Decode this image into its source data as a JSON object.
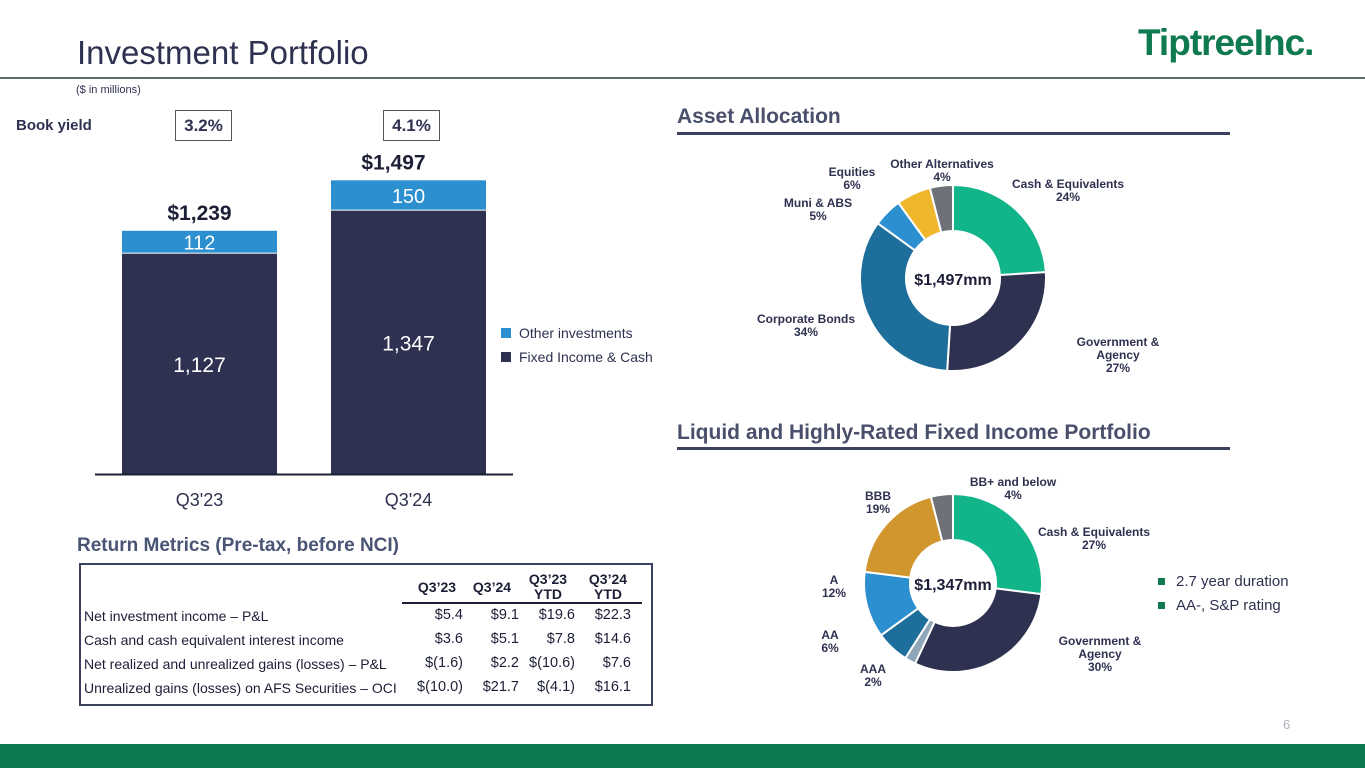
{
  "header": {
    "title": "Investment Portfolio",
    "logo_main": "Tiptree",
    "logo_suffix": "Inc.",
    "subtitle": "($ in millions)"
  },
  "book_yield": {
    "label": "Book yield",
    "values": [
      "3.2%",
      "4.1%"
    ]
  },
  "sections": {
    "asset_allocation": "Asset Allocation",
    "fixed_income": "Liquid and Highly-Rated Fixed Income Portfolio",
    "return_metrics": "Return Metrics (Pre-tax, before NCI)"
  },
  "bar_legend": [
    "Other investments",
    "Fixed Income & Cash"
  ],
  "fixed_income_notes": [
    "2.7 year duration",
    "AA-, S&P rating"
  ],
  "table": {
    "headers": [
      [
        "Q3’23",
        ""
      ],
      [
        "Q3’24",
        ""
      ],
      [
        "Q3’23",
        "YTD"
      ],
      [
        "Q3’24",
        "YTD"
      ]
    ],
    "rows": [
      {
        "label": "Net investment income – P&L",
        "values": [
          "$5.4",
          "$9.1",
          "$19.6",
          "$22.3"
        ]
      },
      {
        "label": "Cash and cash equivalent interest income",
        "values": [
          "$3.6",
          "$5.1",
          "$7.8",
          "$14.6"
        ]
      },
      {
        "label": "Net realized and unrealized gains (losses) – P&L",
        "values": [
          "$(1.6)",
          "$2.2",
          "$(10.6)",
          "$7.6"
        ]
      },
      {
        "label": "Unrealized gains (losses) on AFS Securities – OCI",
        "values": [
          "$(10.0)",
          "$21.7",
          "$(4.1)",
          "$16.1"
        ]
      }
    ]
  },
  "page_number": "6",
  "chart_data": [
    {
      "type": "bar",
      "stacked": true,
      "categories": [
        "Q3'23",
        "Q3'24"
      ],
      "series": [
        {
          "name": "Fixed Income & Cash",
          "values": [
            1127,
            1347
          ],
          "labels": [
            "1,127",
            "1,347"
          ],
          "color": "#2e3150"
        },
        {
          "name": "Other investments",
          "values": [
            112,
            150
          ],
          "labels": [
            "112",
            "150"
          ],
          "color": "#2b8fd0"
        }
      ],
      "totals": [
        "$1,239",
        "$1,497"
      ],
      "ylim": [
        0,
        1500
      ]
    },
    {
      "type": "pie",
      "donut": true,
      "center_label": "$1,497mm",
      "slices": [
        {
          "name": "Cash & Equivalents",
          "value": 24,
          "label": "24%",
          "color": "#12b48a"
        },
        {
          "name": "Government & Agency",
          "value": 27,
          "label": "27%",
          "color": "#2e3150"
        },
        {
          "name": "Corporate Bonds",
          "value": 34,
          "label": "34%",
          "color": "#1e6e9c"
        },
        {
          "name": "Muni & ABS",
          "value": 5,
          "label": "5%",
          "color": "#2b8fd0"
        },
        {
          "name": "Equities",
          "value": 6,
          "label": "6%",
          "color": "#f0b62c"
        },
        {
          "name": "Other Alternatives",
          "value": 4,
          "label": "4%",
          "color": "#6e7178"
        }
      ]
    },
    {
      "type": "pie",
      "donut": true,
      "center_label": "$1,347mm",
      "slices": [
        {
          "name": "Cash & Equivalents",
          "value": 27,
          "label": "27%",
          "color": "#12b48a"
        },
        {
          "name": "Government & Agency",
          "value": 30,
          "label": "30%",
          "color": "#2e3150"
        },
        {
          "name": "AAA",
          "value": 2,
          "label": "2%",
          "color": "#8fa6b8"
        },
        {
          "name": "AA",
          "value": 6,
          "label": "6%",
          "color": "#1e6e9c"
        },
        {
          "name": "A",
          "value": 12,
          "label": "12%",
          "color": "#2b8fd0"
        },
        {
          "name": "BBB",
          "value": 19,
          "label": "19%",
          "color": "#d2962e"
        },
        {
          "name": "BB+ and below",
          "value": 4,
          "label": "4%",
          "color": "#6e7178"
        }
      ]
    }
  ]
}
